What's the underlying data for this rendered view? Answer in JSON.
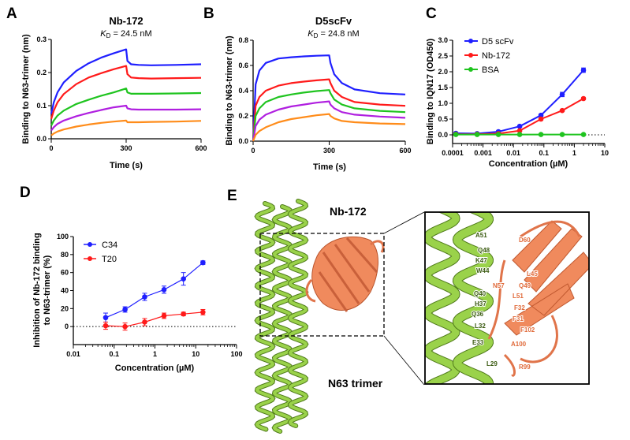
{
  "panel_letters": [
    "A",
    "B",
    "C",
    "D",
    "E"
  ],
  "colors": {
    "blue": "#1f1fff",
    "red": "#ff1a1a",
    "green": "#1fc41f",
    "purple": "#b01fe0",
    "orange": "#ff8c1a",
    "helix": "#8cc63f",
    "nanobody": "#f08a5d"
  },
  "chart_data": [
    {
      "id": "A",
      "type": "line",
      "title": "Nb-172",
      "kd": {
        "symbol": "K",
        "sub": "D",
        "value": " = 24.5 nM"
      },
      "xlabel": "Time (s)",
      "ylabel": "Binding to N63-trimer (nm)",
      "xlim": [
        0,
        600
      ],
      "ylim": [
        0,
        0.3
      ],
      "xticks": [
        "0",
        "300",
        "600"
      ],
      "xtick_values": [
        0,
        300,
        600
      ],
      "yticks": [
        "0.0",
        "0.1",
        "0.2",
        "0.3"
      ],
      "ytick_values": [
        0,
        0.1,
        0.2,
        0.3
      ],
      "x": [
        0,
        10,
        25,
        50,
        100,
        150,
        200,
        250,
        300,
        305,
        320,
        350,
        400,
        500,
        600
      ],
      "series": [
        {
          "color": "#1f1fff",
          "values": [
            0.075,
            0.11,
            0.14,
            0.17,
            0.205,
            0.228,
            0.245,
            0.258,
            0.27,
            0.235,
            0.225,
            0.223,
            0.222,
            0.223,
            0.225
          ]
        },
        {
          "color": "#ff1a1a",
          "values": [
            0.06,
            0.085,
            0.11,
            0.135,
            0.165,
            0.185,
            0.198,
            0.21,
            0.22,
            0.195,
            0.185,
            0.183,
            0.182,
            0.183,
            0.184
          ]
        },
        {
          "color": "#1fc41f",
          "values": [
            0.04,
            0.055,
            0.07,
            0.085,
            0.105,
            0.118,
            0.13,
            0.14,
            0.152,
            0.14,
            0.136,
            0.136,
            0.136,
            0.137,
            0.138
          ]
        },
        {
          "color": "#b01fe0",
          "values": [
            0.025,
            0.035,
            0.045,
            0.055,
            0.068,
            0.078,
            0.087,
            0.095,
            0.1,
            0.092,
            0.089,
            0.088,
            0.088,
            0.088,
            0.089
          ]
        },
        {
          "color": "#ff8c1a",
          "values": [
            0.01,
            0.016,
            0.022,
            0.028,
            0.037,
            0.043,
            0.048,
            0.052,
            0.055,
            0.05,
            0.05,
            0.05,
            0.051,
            0.052,
            0.054
          ]
        }
      ]
    },
    {
      "id": "B",
      "type": "line",
      "title": "D5scFv",
      "kd": {
        "symbol": "K",
        "sub": "D",
        "value": " = 24.8 nM"
      },
      "xlabel": "Time (s)",
      "ylabel": "Binding to N63-trimer (nm)",
      "xlim": [
        0,
        600
      ],
      "ylim": [
        0,
        0.8
      ],
      "xticks": [
        "0",
        "300",
        "600"
      ],
      "xtick_values": [
        0,
        300,
        600
      ],
      "yticks": [
        "0.0",
        "0.2",
        "0.4",
        "0.6",
        "0.8"
      ],
      "ytick_values": [
        0,
        0.2,
        0.4,
        0.6,
        0.8
      ],
      "x": [
        0,
        10,
        25,
        50,
        100,
        150,
        200,
        250,
        300,
        305,
        320,
        350,
        400,
        500,
        600
      ],
      "series": [
        {
          "color": "#1f1fff",
          "values": [
            0.0,
            0.45,
            0.56,
            0.62,
            0.655,
            0.665,
            0.672,
            0.677,
            0.68,
            0.62,
            0.53,
            0.46,
            0.41,
            0.38,
            0.37
          ]
        },
        {
          "color": "#ff1a1a",
          "values": [
            0.0,
            0.28,
            0.35,
            0.4,
            0.44,
            0.46,
            0.472,
            0.482,
            0.49,
            0.46,
            0.4,
            0.35,
            0.31,
            0.29,
            0.28
          ]
        },
        {
          "color": "#1fc41f",
          "values": [
            0.0,
            0.2,
            0.26,
            0.31,
            0.35,
            0.37,
            0.385,
            0.397,
            0.405,
            0.38,
            0.33,
            0.29,
            0.26,
            0.24,
            0.23
          ]
        },
        {
          "color": "#b01fe0",
          "values": [
            0.0,
            0.12,
            0.17,
            0.21,
            0.25,
            0.275,
            0.29,
            0.305,
            0.315,
            0.29,
            0.26,
            0.23,
            0.21,
            0.195,
            0.185
          ]
        },
        {
          "color": "#ff8c1a",
          "values": [
            0.0,
            0.05,
            0.08,
            0.11,
            0.15,
            0.175,
            0.19,
            0.205,
            0.215,
            0.2,
            0.18,
            0.16,
            0.15,
            0.14,
            0.135
          ]
        }
      ]
    },
    {
      "id": "C",
      "type": "line",
      "xscale": "log",
      "xlabel": "Concentration (µM)",
      "ylabel": "Binding to IQN17 (OD450)",
      "xlim": [
        0.0001,
        10
      ],
      "ylim": [
        -0.25,
        3.0
      ],
      "xticks": [
        "0.0001",
        "0.001",
        "0.01",
        "0.1",
        "1",
        "10"
      ],
      "xtick_values": [
        0.0001,
        0.001,
        0.01,
        0.1,
        1,
        10
      ],
      "yticks": [
        "0.0",
        "0.5",
        "1.0",
        "1.5",
        "2.0",
        "2.5",
        "3.0"
      ],
      "ytick_values": [
        0,
        0.5,
        1,
        1.5,
        2,
        2.5,
        3
      ],
      "x": [
        0.000128,
        0.00064,
        0.0032,
        0.016,
        0.08,
        0.4,
        2
      ],
      "legend_position": "top-left",
      "series": [
        {
          "name": "D5 scFv",
          "color": "#1f1fff",
          "values": [
            0.05,
            0.04,
            0.1,
            0.27,
            0.62,
            1.28,
            2.05
          ],
          "errors": [
            0.02,
            0.02,
            0.03,
            0.03,
            0.04,
            0.07,
            0.07
          ]
        },
        {
          "name": "Nb-172",
          "color": "#ff1a1a",
          "values": [
            0.02,
            0.02,
            0.04,
            0.13,
            0.5,
            0.77,
            1.15
          ],
          "errors": [
            0.01,
            0.01,
            0.02,
            0.02,
            0.03,
            0.03,
            0.03
          ]
        },
        {
          "name": "BSA",
          "color": "#1fc41f",
          "values": [
            0.01,
            0.01,
            0.01,
            0.01,
            0.01,
            0.01,
            0.01
          ],
          "errors": [
            0,
            0,
            0,
            0,
            0,
            0,
            0
          ]
        }
      ]
    },
    {
      "id": "D",
      "type": "scatter",
      "xscale": "log",
      "fit": true,
      "xlabel": "Concentration (µM)",
      "ylabel": [
        "Inhibition of  Nb-172 binding",
        "to N63-trimer (%)"
      ],
      "xlim": [
        0.01,
        100
      ],
      "ylim": [
        -20,
        100
      ],
      "xticks": [
        "0.01",
        "0.1",
        "1",
        "10",
        "100"
      ],
      "xtick_values": [
        0.01,
        0.1,
        1,
        10,
        100
      ],
      "yticks": [
        "0",
        "20",
        "40",
        "60",
        "80",
        "100"
      ],
      "ytick_values": [
        0,
        20,
        40,
        60,
        80,
        100
      ],
      "x": [
        0.062,
        0.185,
        0.56,
        1.67,
        5,
        15
      ],
      "legend_position": "top-left",
      "series": [
        {
          "name": "C34",
          "color": "#1f1fff",
          "values": [
            10,
            19,
            33,
            41,
            53,
            71
          ],
          "errors": [
            5,
            3,
            4,
            4,
            7,
            2
          ]
        },
        {
          "name": "T20",
          "color": "#ff1a1a",
          "values": [
            1,
            0,
            5,
            12,
            14,
            16
          ],
          "errors": [
            4,
            4,
            4,
            3,
            2,
            3
          ]
        }
      ]
    }
  ],
  "panel_e": {
    "nanobody_label": "Nb-172",
    "trimer_label": "N63 trimer",
    "n63_residues": [
      "A51",
      "Q48",
      "K47",
      "W44",
      "Q40",
      "H37",
      "Q36",
      "L32",
      "E33",
      "L29"
    ],
    "nb_residues": [
      "D60",
      "L45",
      "Q49",
      "N57",
      "L51",
      "F32",
      "F31",
      "F102",
      "A100",
      "R99"
    ]
  }
}
